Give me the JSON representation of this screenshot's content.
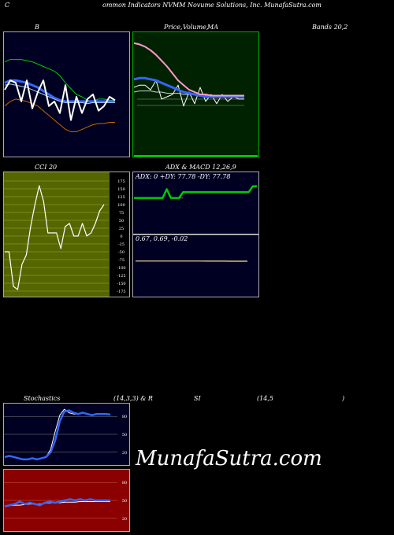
{
  "header": {
    "left_letter": "C",
    "title": "ommon  Indicators NVMM Novume  Solutions, Inc. MunafaSutra.com"
  },
  "labels": {
    "bands_b": "B",
    "price_a": "Price,",
    "price_b": "Volume,",
    "price_c": "MA",
    "bands_right": "Bands 20,2",
    "cci": "CCI 20",
    "adx_macd": "ADX  & MACD 12,26,9",
    "stoch_a": "Stochastics",
    "stoch_b": "(14,3,3) & R",
    "rsi_a": "SI",
    "rsi_b": "(14,5",
    "rsi_c": ")"
  },
  "watermark": "MunafaSutra.com",
  "colors": {
    "blue_panel": "#000022",
    "green_panel": "#002200",
    "red_panel": "#8b0000",
    "grid_olive": "#666600",
    "grid_white": "#888888",
    "band_green": "#00cc00",
    "band_orange": "#cc6600",
    "band_blue": "#3366ff",
    "price_white": "#ffffff",
    "ma_pink": "#ff99cc",
    "cci_olive": "#556600",
    "adx_green": "#00cc00",
    "stoch_blue": "#3366ff"
  },
  "chart_data": [
    {
      "id": "bollinger",
      "type": "line",
      "ylim": [
        0,
        100
      ],
      "series": [
        {
          "role": "upper",
          "values": [
            78,
            80,
            80,
            80,
            79,
            78,
            76,
            74,
            72,
            70,
            66,
            60,
            55,
            50,
            48,
            45,
            44,
            46,
            46,
            45,
            45
          ]
        },
        {
          "role": "middle",
          "values": [
            60,
            62,
            62,
            61,
            60,
            58,
            56,
            53,
            50,
            47,
            45,
            44,
            44,
            44,
            44,
            44,
            44,
            44,
            44,
            44,
            44
          ]
        },
        {
          "role": "middle2",
          "values": [
            58,
            59,
            58,
            57,
            56,
            54,
            52,
            50,
            48,
            46,
            44,
            43,
            43,
            43,
            43,
            42,
            43,
            43,
            43,
            43,
            43
          ]
        },
        {
          "role": "lower",
          "values": [
            40,
            44,
            46,
            45,
            44,
            42,
            40,
            36,
            32,
            28,
            24,
            20,
            18,
            18,
            20,
            22,
            24,
            25,
            25,
            26,
            26
          ]
        },
        {
          "role": "price",
          "values": [
            54,
            62,
            60,
            44,
            62,
            38,
            52,
            62,
            40,
            44,
            34,
            58,
            28,
            48,
            34,
            46,
            50,
            36,
            40,
            48,
            45
          ]
        }
      ]
    },
    {
      "id": "price_ma",
      "type": "line",
      "ylim": [
        0,
        100
      ],
      "series": [
        {
          "role": "ma_pink",
          "values": [
            94,
            93,
            91,
            88,
            84,
            79,
            74,
            68,
            62,
            58,
            54,
            52,
            50,
            50,
            49,
            49,
            49,
            49,
            49,
            49,
            49
          ]
        },
        {
          "role": "price",
          "values": [
            56,
            58,
            58,
            54,
            62,
            46,
            48,
            50,
            58,
            40,
            52,
            42,
            56,
            44,
            50,
            42,
            50,
            44,
            48,
            46,
            46
          ]
        },
        {
          "role": "ma_blue",
          "values": [
            63,
            64,
            64,
            63,
            62,
            60,
            58,
            56,
            54,
            52,
            51,
            50,
            49,
            48,
            48,
            48,
            48,
            48,
            48,
            48,
            48
          ]
        },
        {
          "role": "ma_white",
          "values": [
            52,
            53,
            53,
            53,
            52,
            52,
            51,
            51,
            51,
            50,
            50,
            50,
            49,
            49,
            49,
            49,
            49,
            49,
            49,
            49,
            49
          ]
        }
      ]
    },
    {
      "id": "cci",
      "type": "line",
      "ylim": [
        -175,
        175
      ],
      "yticks": [
        175,
        150,
        125,
        100,
        75,
        50,
        25,
        0,
        -25,
        -50,
        -75,
        -100,
        -125,
        -150,
        -175
      ],
      "series": [
        {
          "role": "cci",
          "values": [
            -50,
            -50,
            -160,
            -170,
            -90,
            -60,
            30,
            100,
            160,
            110,
            10,
            10,
            10,
            -40,
            30,
            40,
            0,
            0,
            40,
            0,
            10,
            40,
            80,
            100
          ]
        }
      ]
    },
    {
      "id": "adx",
      "type": "line",
      "ylim": [
        0,
        100
      ],
      "readout": {
        "adx": "ADX: 0",
        "pdi": "+DY: 77.78",
        "mdi": "-DY: 77.78"
      },
      "series": [
        {
          "role": "dmi",
          "values": [
            60,
            60,
            60,
            60,
            60,
            60,
            60,
            60,
            75,
            60,
            60,
            60,
            70,
            70,
            70,
            70,
            70,
            70,
            70,
            70,
            70,
            70,
            70,
            70,
            70,
            70,
            70,
            70,
            70,
            80,
            80
          ]
        },
        {
          "role": "adx_orange",
          "values": [
            60,
            60,
            60,
            60,
            60,
            60,
            60,
            60,
            75,
            60,
            60,
            60,
            60,
            null,
            null,
            null,
            null,
            null,
            null,
            null,
            null,
            null,
            null,
            null,
            null,
            null,
            null,
            null,
            null,
            null,
            null
          ]
        }
      ]
    },
    {
      "id": "macd",
      "type": "line",
      "ylim": [
        -1,
        1
      ],
      "readout": "0.67,  0.69,  -0.02",
      "series": [
        {
          "role": "macd",
          "values": [
            0.69,
            0.69,
            0.69,
            0.69,
            0.69,
            0.69,
            0.69,
            0.69,
            0.69,
            0.68,
            0.68,
            0.68,
            0.67,
            0.67,
            0.67
          ]
        }
      ]
    },
    {
      "id": "stochastics",
      "type": "line",
      "ylim": [
        0,
        100
      ],
      "yticks": [
        80,
        50,
        20
      ],
      "series": [
        {
          "role": "k",
          "values": [
            12,
            14,
            12,
            10,
            8,
            8,
            10,
            8,
            10,
            12,
            20,
            40,
            72,
            88,
            90,
            86,
            84,
            86,
            84,
            82,
            84,
            84,
            84,
            83
          ]
        },
        {
          "role": "d",
          "values": [
            12,
            14,
            12,
            10,
            8,
            8,
            10,
            8,
            10,
            12,
            25,
            55,
            82,
            92,
            86,
            84,
            84,
            86,
            84,
            82,
            84,
            84,
            84,
            83
          ]
        }
      ]
    },
    {
      "id": "rsi",
      "type": "line",
      "ylim": [
        0,
        100
      ],
      "yticks": [
        80,
        50,
        20
      ],
      "series": [
        {
          "role": "rsi",
          "values": [
            40,
            42,
            44,
            48,
            44,
            46,
            44,
            42,
            46,
            48,
            46,
            48,
            50,
            52,
            50,
            52,
            50,
            52,
            50,
            50,
            50,
            50
          ]
        },
        {
          "role": "rsi_ma",
          "values": [
            40,
            41,
            42,
            42,
            43,
            44,
            44,
            44,
            45,
            46,
            46,
            46,
            47,
            47,
            47,
            48,
            48,
            48,
            48,
            48,
            48,
            48
          ]
        }
      ]
    }
  ]
}
